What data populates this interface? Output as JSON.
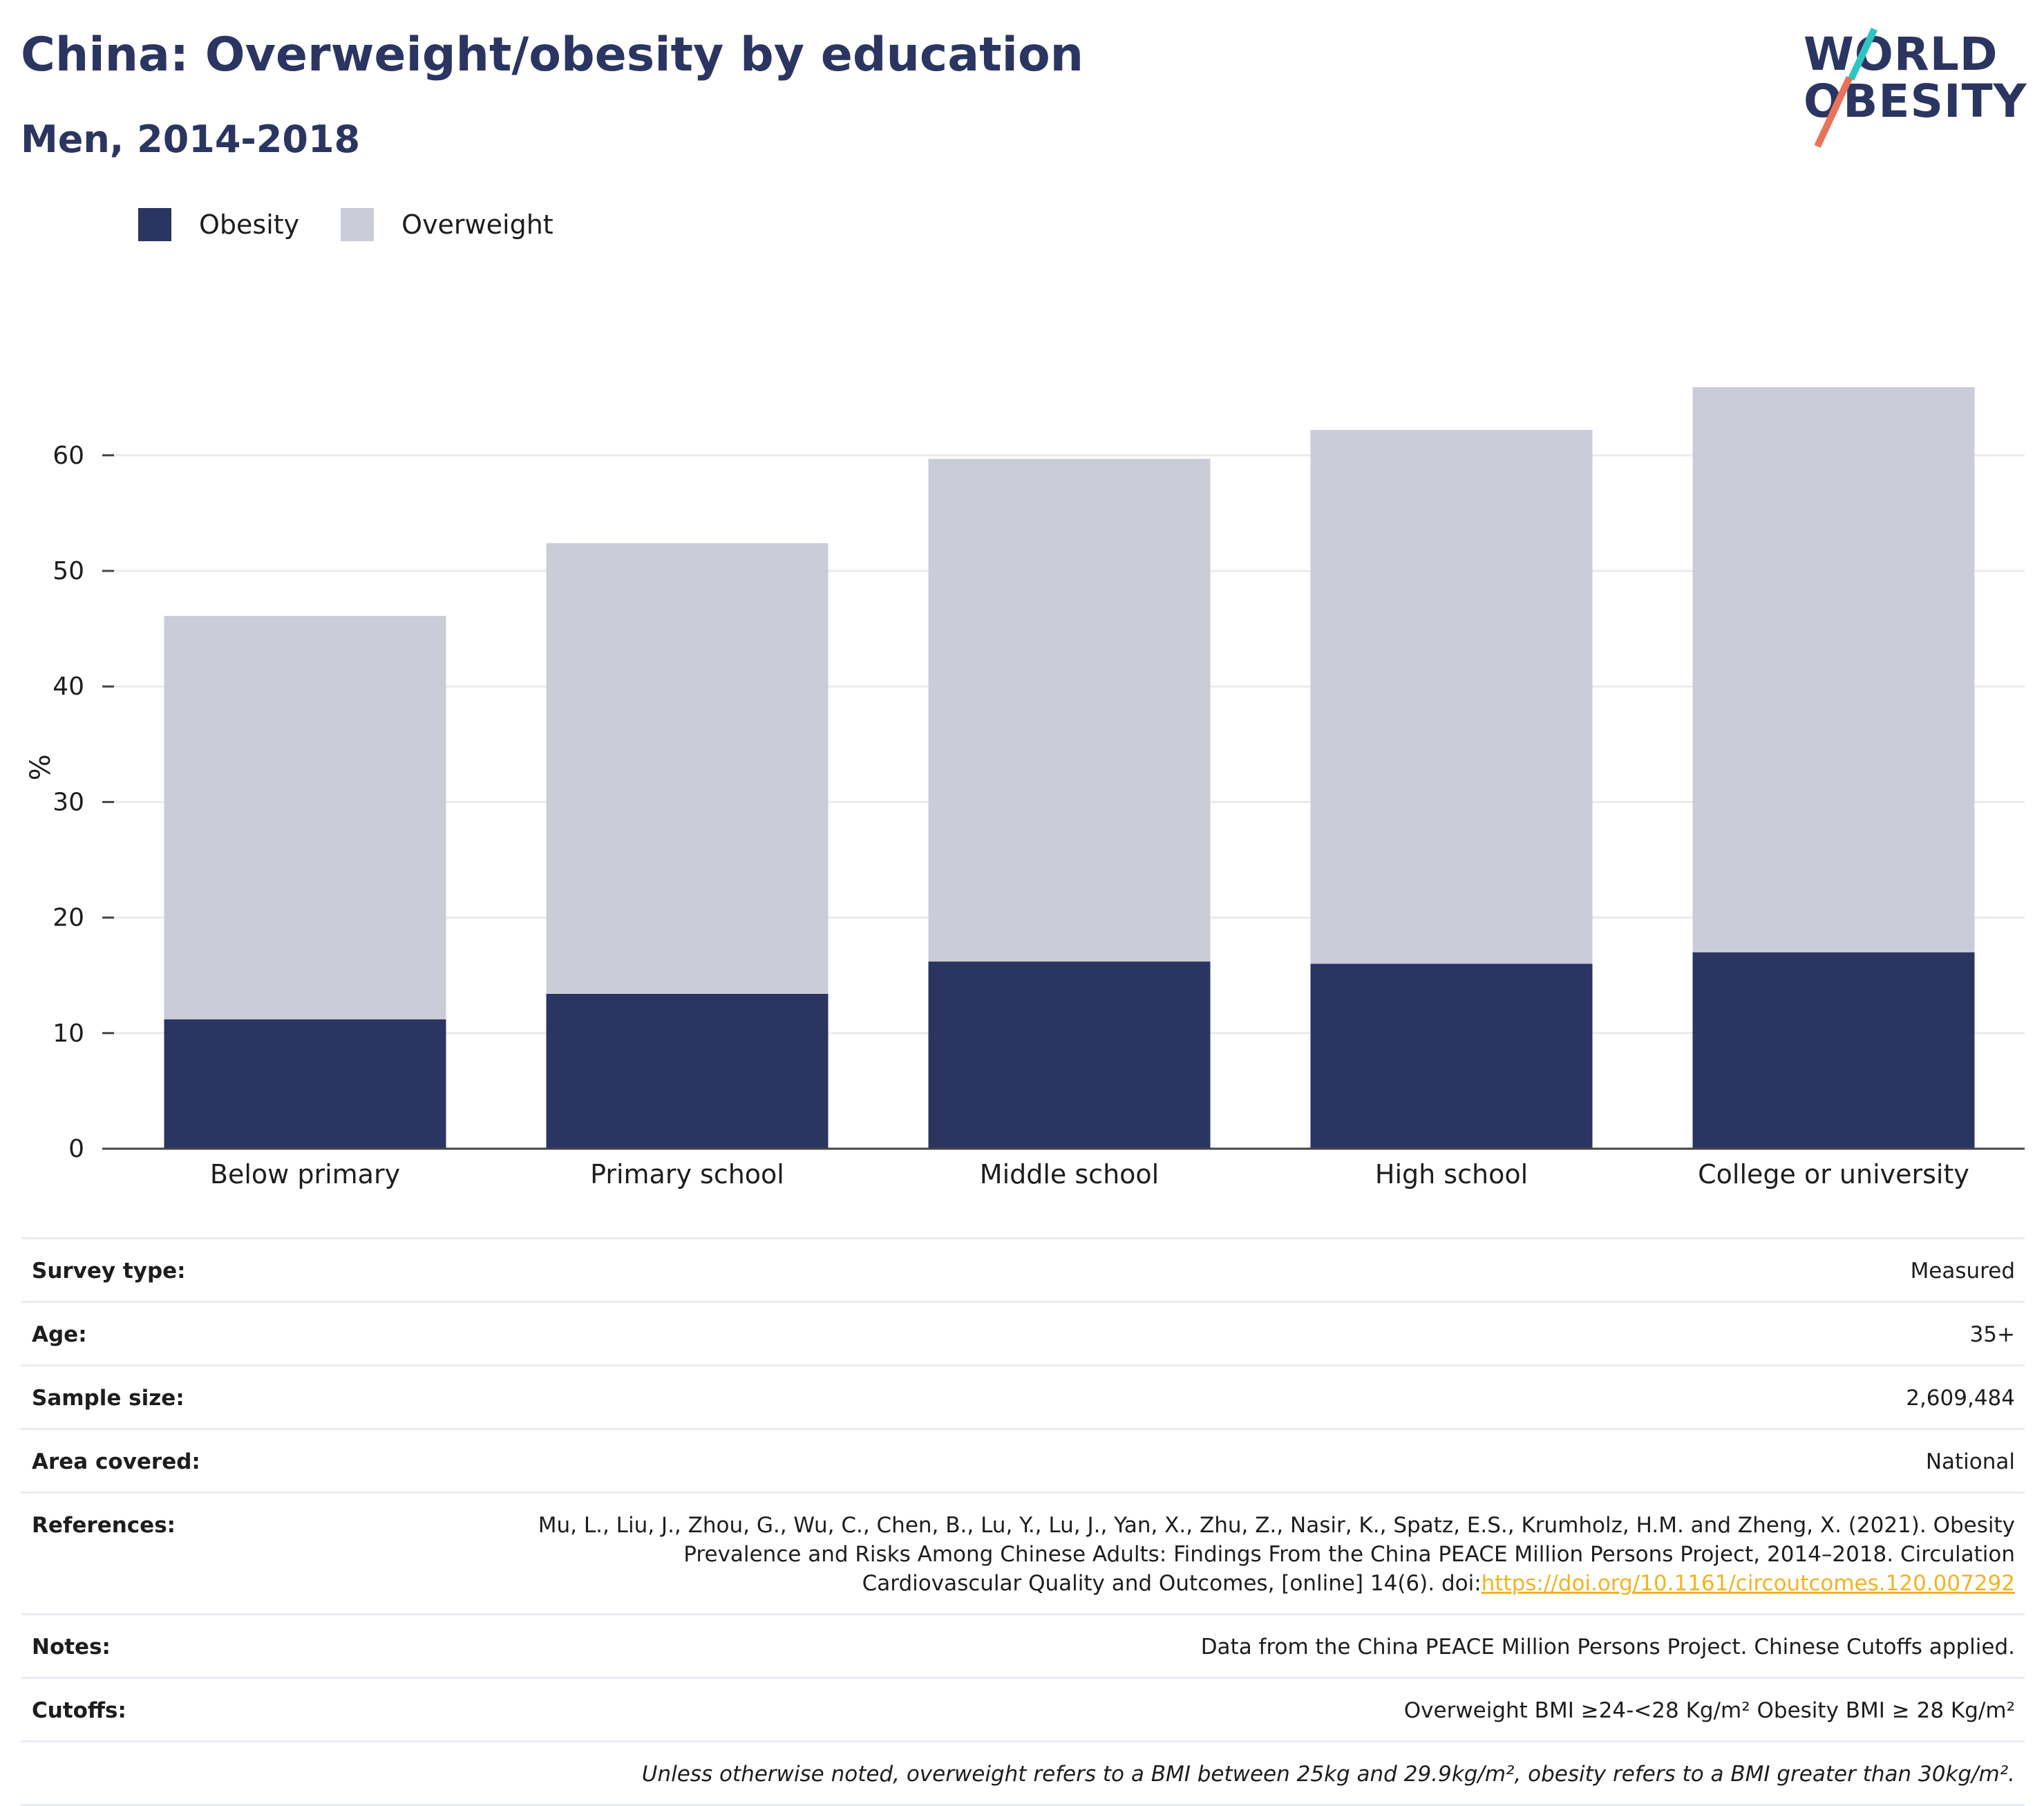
{
  "header": {
    "title": "China: Overweight/obesity by education",
    "subtitle": "Men, 2014-2018",
    "logo_line1": "WORLD",
    "logo_line2": "OBESITY"
  },
  "colors": {
    "obesity": "#2b3561",
    "overweight": "#caccd8",
    "title": "#2b3561",
    "link": "#f0b323",
    "grid": "#ebebeb"
  },
  "legend": {
    "items": [
      {
        "label": "Obesity",
        "color": "#2b3561"
      },
      {
        "label": "Overweight",
        "color": "#caccd8"
      }
    ]
  },
  "chart_data": {
    "type": "bar",
    "stacked": true,
    "categories": [
      "Below primary",
      "Primary school",
      "Middle school",
      "High school",
      "College or university"
    ],
    "series": [
      {
        "name": "Obesity",
        "values": [
          11.2,
          13.4,
          16.2,
          16.0,
          17.0
        ]
      },
      {
        "name": "Overweight",
        "values": [
          34.9,
          39.0,
          43.5,
          46.2,
          48.9
        ]
      }
    ],
    "ylabel": "%",
    "xlabel": "",
    "ylim": [
      0,
      66
    ],
    "yticks": [
      0,
      10,
      20,
      30,
      40,
      50,
      60
    ],
    "grid": true,
    "legend_position": "top-left"
  },
  "info": {
    "rows": [
      {
        "key": "Survey type:",
        "value": "Measured"
      },
      {
        "key": "Age:",
        "value": "35+"
      },
      {
        "key": "Sample size:",
        "value": "2,609,484"
      },
      {
        "key": "Area covered:",
        "value": "National"
      }
    ],
    "references_key": "References:",
    "references_line1": "Mu, L., Liu, J., Zhou, G., Wu, C., Chen, B., Lu, Y., Lu, J., Yan, X., Zhu, Z., Nasir, K., Spatz, E.S., Krumholz, H.M. and Zheng, X. (2021). Obesity",
    "references_line2": "Prevalence and Risks Among Chinese Adults: Findings From the China PEACE Million Persons Project, 2014–2018. Circulation",
    "references_line3": "Cardiovascular Quality and Outcomes, [online] 14(6). doi:",
    "references_link": "https://doi.org/10.1161/circoutcomes.120.007292",
    "notes_key": "Notes:",
    "notes_value": "Data from the China PEACE Million Persons Project. Chinese Cutoffs applied.",
    "cutoffs_key": "Cutoffs:",
    "cutoffs_value": "Overweight BMI ≥24-<28 Kg/m² Obesity BMI ≥ 28 Kg/m²",
    "footnote": "Unless otherwise noted, overweight refers to a BMI between 25kg and 29.9kg/m², obesity refers to a BMI greater than 30kg/m²."
  }
}
